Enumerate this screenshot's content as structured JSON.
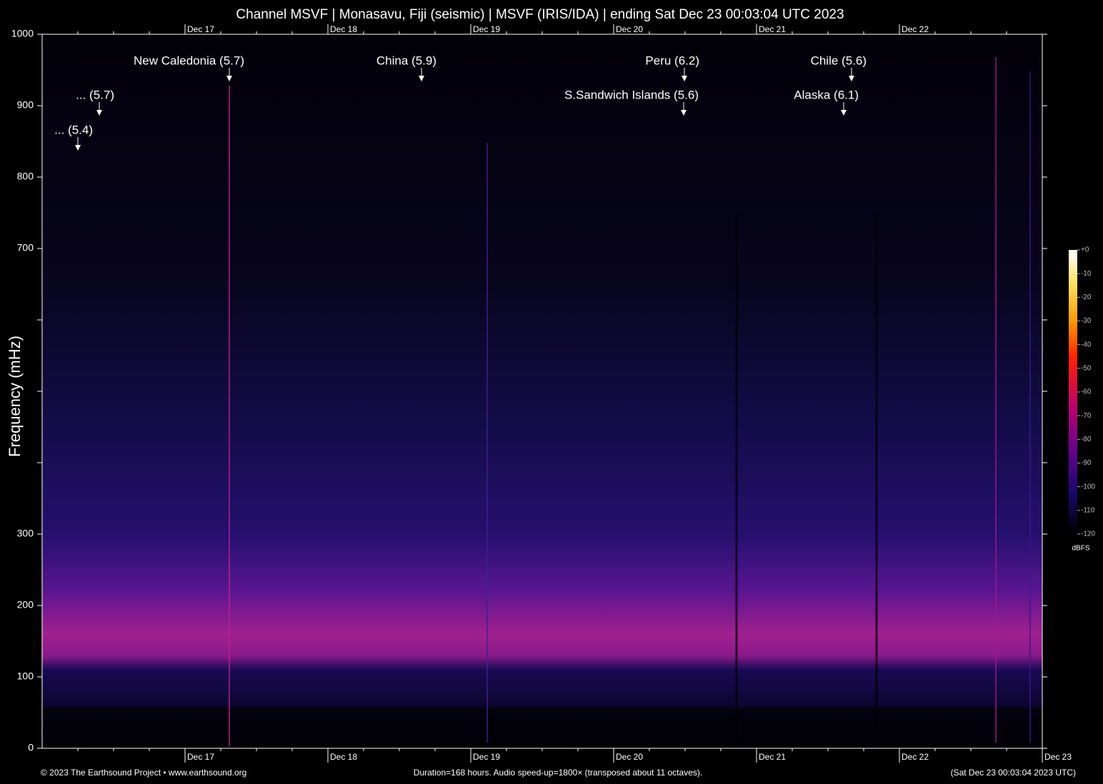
{
  "chart_data": {
    "type": "spectrogram",
    "title": "Channel MSVF | Monasavu, Fiji (seismic) | MSVF (IRIS/IDA) | ending Sat Dec 23 00:03:04 UTC 2023",
    "y_label": "Frequency (mHz)",
    "ylim": [
      0,
      1000
    ],
    "yticks": [
      0,
      100,
      200,
      300,
      700,
      800,
      900,
      1000
    ],
    "y_unlabeled_ticks": [
      400,
      500,
      600
    ],
    "x": [
      "Dec 17",
      "Dec 18",
      "Dec 19",
      "Dec 20",
      "Dec 21",
      "Dec 22",
      "Dec 23"
    ],
    "annotations": [
      {
        "label": "... (5.4)"
      },
      {
        "label": "... (5.7)"
      },
      {
        "label": "New Caledonia (5.7)"
      },
      {
        "label": "China (5.9)"
      },
      {
        "label": "Peru (6.2)"
      },
      {
        "label": "S.Sandwich Islands (5.6)"
      },
      {
        "label": "Chile (5.6)"
      },
      {
        "label": "Alaska (6.1)"
      }
    ],
    "colorbar": {
      "label": "dBFS",
      "lim": [
        -120,
        0
      ],
      "ticks": [
        {
          "value": 0,
          "label": "+0"
        },
        -10,
        -20,
        -30,
        -40,
        -50,
        -60,
        -70,
        -80,
        -90,
        -100,
        -110,
        -120
      ]
    },
    "footer": {
      "left": "© 2023 The Earthsound Project • www.earthsound.org",
      "center": "Duration=168 hours. Audio speed-up=1800× (transposed about 11 octaves).",
      "right": "(Sat Dec 23 00:03:04 2023 UTC)"
    }
  }
}
